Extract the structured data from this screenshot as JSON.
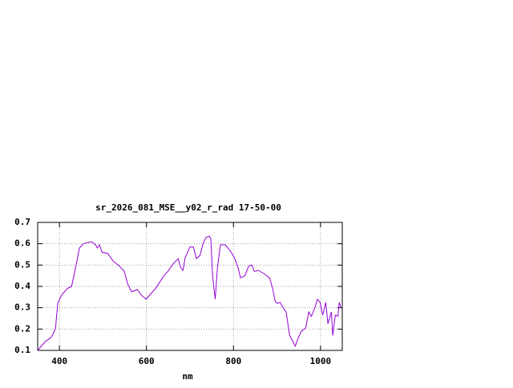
{
  "chart_data": {
    "type": "line",
    "title": "sr_2026_081_MSE__y02_r_rad 17-50-00",
    "x_label": "nm",
    "xlim": [
      350,
      1050
    ],
    "ylim": [
      0.1,
      0.7
    ],
    "xticks": [
      400,
      600,
      800,
      1000
    ],
    "yticks": [
      0.1,
      0.2,
      0.3,
      0.4,
      0.5,
      0.6,
      0.7
    ],
    "grid": true,
    "series": [
      {
        "color": "#9400d3",
        "x": [
          350,
          367,
          380,
          385,
          391,
          396,
          405,
          418,
          428,
          437,
          446,
          455,
          474,
          483,
          487,
          492,
          498,
          511,
          523,
          538,
          549,
          557,
          566,
          579,
          588,
          599,
          612,
          621,
          640,
          649,
          663,
          673,
          678,
          684,
          689,
          700,
          708,
          715,
          723,
          730,
          737,
          745,
          748,
          752,
          758,
          763,
          770,
          781,
          793,
          802,
          811,
          816,
          826,
          835,
          842,
          848,
          857,
          870,
          883,
          890,
          896,
          901,
          907,
          914,
          921,
          929,
          936,
          942,
          949,
          956,
          966,
          973,
          979,
          986,
          993,
          999,
          1005,
          1012,
          1017,
          1025,
          1028,
          1034,
          1040,
          1043,
          1047
        ],
        "values": [
          0.1,
          0.14,
          0.16,
          0.175,
          0.205,
          0.32,
          0.36,
          0.39,
          0.4,
          0.485,
          0.58,
          0.6,
          0.61,
          0.595,
          0.58,
          0.595,
          0.56,
          0.555,
          0.52,
          0.495,
          0.47,
          0.41,
          0.375,
          0.385,
          0.36,
          0.34,
          0.37,
          0.39,
          0.45,
          0.47,
          0.51,
          0.53,
          0.49,
          0.475,
          0.535,
          0.585,
          0.585,
          0.53,
          0.545,
          0.6,
          0.63,
          0.635,
          0.62,
          0.45,
          0.34,
          0.485,
          0.595,
          0.595,
          0.565,
          0.535,
          0.485,
          0.44,
          0.45,
          0.495,
          0.5,
          0.47,
          0.475,
          0.46,
          0.44,
          0.39,
          0.33,
          0.32,
          0.325,
          0.3,
          0.28,
          0.17,
          0.145,
          0.12,
          0.16,
          0.19,
          0.205,
          0.28,
          0.26,
          0.295,
          0.34,
          0.325,
          0.265,
          0.325,
          0.225,
          0.28,
          0.17,
          0.265,
          0.26,
          0.325,
          0.3
        ]
      }
    ]
  }
}
